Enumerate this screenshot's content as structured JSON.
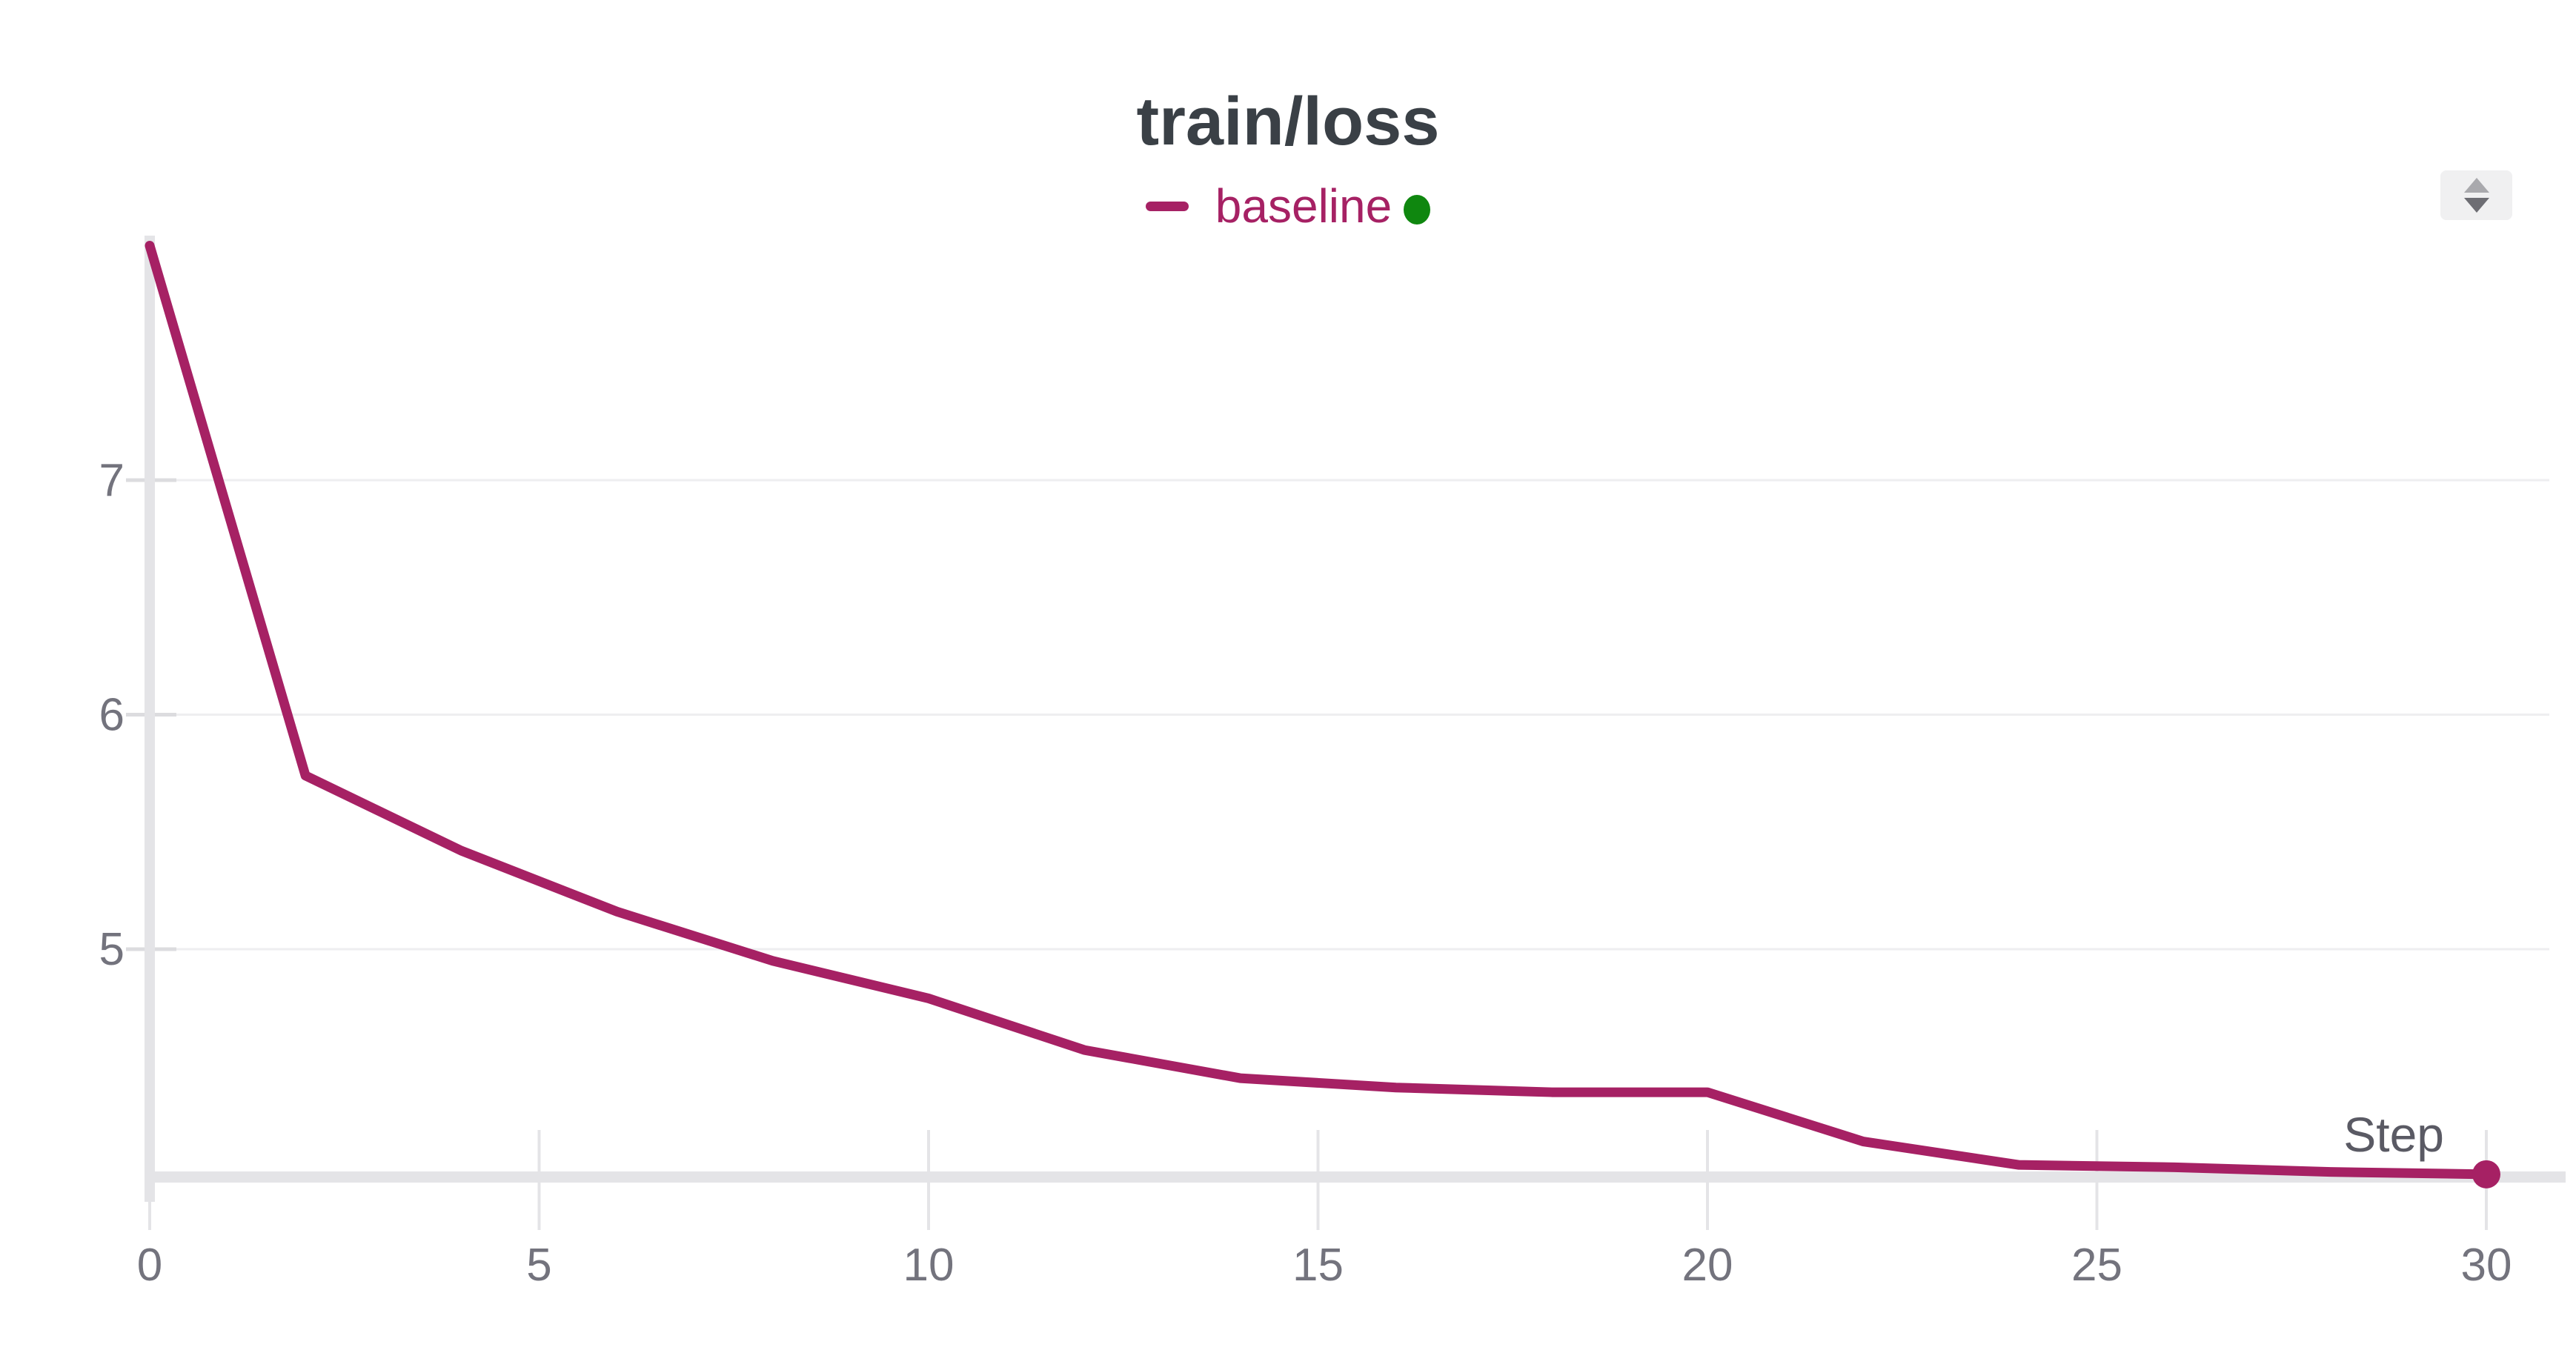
{
  "header": {
    "title": "train/loss"
  },
  "legend": {
    "series_label": "baseline",
    "status_dot_color": "#0f870f"
  },
  "axis": {
    "x_label": "Step"
  },
  "controls": {
    "panel_stepper_icon": "up-down-arrows"
  },
  "colors": {
    "series": "#a62164",
    "title_text": "#3a4046",
    "tick_text": "#73737d",
    "step_label_text": "#5a5a64",
    "gridline": "#eeeef0",
    "axis_bar": "#e4e4e7",
    "minor_tick": "#dcdcdf"
  },
  "chart_data": {
    "type": "line",
    "title": "train/loss",
    "xlabel": "Step",
    "ylabel": "",
    "series": [
      {
        "name": "baseline",
        "color": "#a62164",
        "x": [
          0,
          2,
          4,
          6,
          8,
          10,
          12,
          14,
          16,
          18,
          20,
          22,
          24,
          26,
          28,
          30
        ],
        "y": [
          8.0,
          5.74,
          5.42,
          5.16,
          4.95,
          4.79,
          4.57,
          4.45,
          4.41,
          4.39,
          4.39,
          4.18,
          4.08,
          4.07,
          4.05,
          4.04
        ]
      }
    ],
    "xticks": [
      0,
      5,
      10,
      15,
      20,
      25,
      30
    ],
    "yticks": [
      5,
      6,
      7
    ],
    "xlim": [
      0,
      30
    ],
    "ylim": [
      4.04,
      8.0
    ],
    "grid": "horizontal",
    "legend_position": "top-center",
    "end_marker": true
  }
}
